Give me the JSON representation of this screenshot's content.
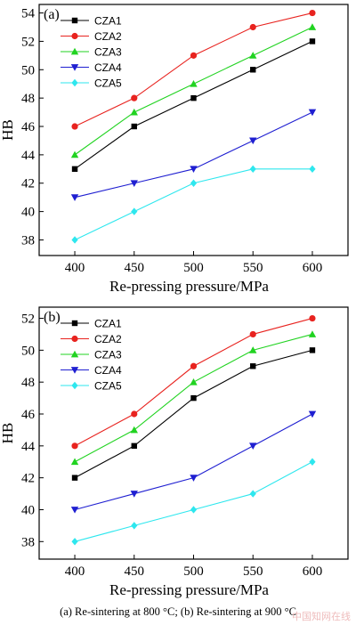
{
  "colors": {
    "CZA1": "#000000",
    "CZA2": "#e8231f",
    "CZA3": "#21d321",
    "CZA4": "#1f1fd1",
    "CZA5": "#2ee7ee"
  },
  "chart_data": [
    {
      "type": "line",
      "panel_label": "(a)",
      "xlabel": "Re-pressing pressure/MPa",
      "ylabel": "HB",
      "x": [
        400,
        450,
        500,
        550,
        600
      ],
      "xticks": [
        400,
        450,
        500,
        550,
        600
      ],
      "yticks": [
        38,
        40,
        42,
        44,
        46,
        48,
        50,
        52,
        54
      ],
      "xlim": [
        370,
        630
      ],
      "ylim": [
        36.9,
        54.6
      ],
      "legend_position": "top-left",
      "series": [
        {
          "name": "CZA1",
          "marker": "square",
          "values": [
            43,
            46,
            48,
            50,
            52
          ]
        },
        {
          "name": "CZA2",
          "marker": "circle",
          "values": [
            46,
            48,
            51,
            53,
            54
          ]
        },
        {
          "name": "CZA3",
          "marker": "triangle-up",
          "values": [
            44,
            47,
            49,
            51,
            53
          ]
        },
        {
          "name": "CZA4",
          "marker": "triangle-down",
          "values": [
            41,
            42,
            43,
            45,
            47
          ]
        },
        {
          "name": "CZA5",
          "marker": "diamond",
          "values": [
            38,
            40,
            42,
            43,
            43
          ]
        }
      ]
    },
    {
      "type": "line",
      "panel_label": "(b)",
      "xlabel": "Re-pressing pressure/MPa",
      "ylabel": "HB",
      "x": [
        400,
        450,
        500,
        550,
        600
      ],
      "xticks": [
        400,
        450,
        500,
        550,
        600
      ],
      "yticks": [
        38,
        40,
        42,
        44,
        46,
        48,
        50,
        52
      ],
      "xlim": [
        370,
        630
      ],
      "ylim": [
        36.9,
        52.7
      ],
      "legend_position": "top-left",
      "series": [
        {
          "name": "CZA1",
          "marker": "square",
          "values": [
            42,
            44,
            47,
            49,
            50
          ]
        },
        {
          "name": "CZA2",
          "marker": "circle",
          "values": [
            44,
            46,
            49,
            51,
            52
          ]
        },
        {
          "name": "CZA3",
          "marker": "triangle-up",
          "values": [
            43,
            45,
            48,
            50,
            51
          ]
        },
        {
          "name": "CZA4",
          "marker": "triangle-down",
          "values": [
            40,
            41,
            42,
            44,
            46
          ]
        },
        {
          "name": "CZA5",
          "marker": "diamond",
          "values": [
            38,
            39,
            40,
            41,
            43
          ]
        }
      ]
    }
  ],
  "caption": "(a) Re-sintering at 800 °C; (b) Re-sintering at 900 °C",
  "watermark": "中国知网在线"
}
